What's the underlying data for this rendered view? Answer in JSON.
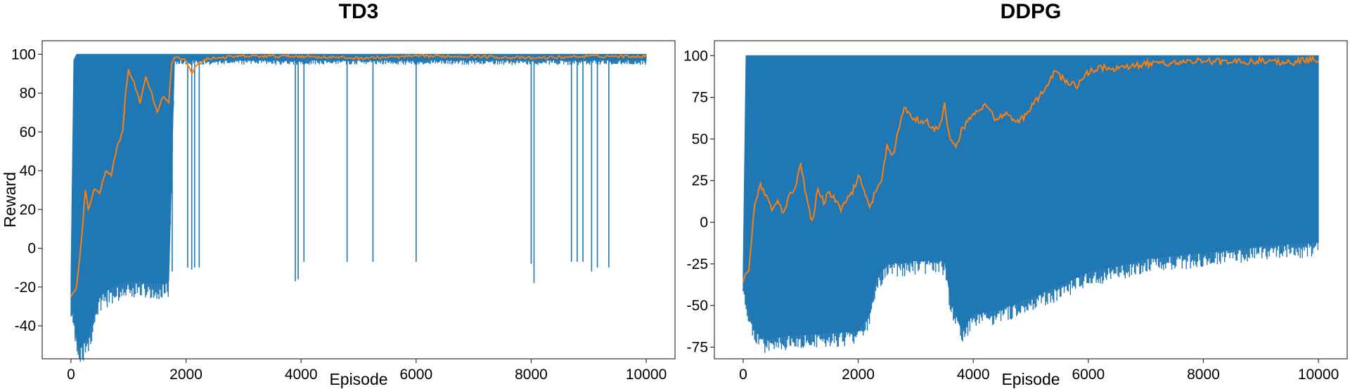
{
  "chart_data": [
    {
      "type": "line",
      "title": "TD3",
      "xlabel": "Episode",
      "ylabel": "Reward",
      "xlim": [
        -500,
        10500
      ],
      "ylim": [
        -57,
        107
      ],
      "xticks": [
        0,
        2000,
        4000,
        6000,
        8000,
        10000
      ],
      "yticks": [
        -40,
        -20,
        0,
        20,
        40,
        60,
        80,
        100
      ],
      "xtick_labels": [
        "0",
        "2000",
        "4000",
        "6000",
        "8000",
        "10000"
      ],
      "ytick_labels": [
        "-40",
        "-20",
        "0",
        "20",
        "40",
        "60",
        "80",
        "100"
      ],
      "grid": false,
      "legend": "none",
      "series": [
        {
          "role": "raw_reward_envelope",
          "color": "#1f77b4",
          "x": [
            0,
            50,
            100,
            150,
            200,
            300,
            400,
            500,
            700,
            900,
            1000,
            1200,
            1400,
            1600,
            1700,
            1800,
            2000,
            2200,
            2300,
            2500,
            3000,
            3500,
            4000,
            5000,
            6000,
            7000,
            8000,
            9000,
            10000
          ],
          "upper": [
            -15,
            97,
            100,
            100,
            100,
            100,
            100,
            100,
            100,
            100,
            100,
            100,
            100,
            100,
            100,
            100,
            100,
            100,
            100,
            100,
            100,
            100,
            100,
            100,
            100,
            100,
            100,
            100,
            100
          ],
          "lower": [
            -35,
            -33,
            -48,
            -52,
            -50,
            -45,
            -35,
            -25,
            -20,
            -18,
            -17,
            -17,
            -18,
            -18,
            -17,
            97,
            97,
            97,
            97,
            97,
            97,
            97,
            97,
            97,
            97,
            97,
            97,
            97,
            97
          ]
        },
        {
          "role": "raw_reward_dips",
          "color": "#1f77b4",
          "x": [
            1760,
            2030,
            2100,
            2150,
            2230,
            3900,
            3950,
            4050,
            4800,
            5250,
            6000,
            8000,
            8050,
            8700,
            8800,
            8900,
            9050,
            9150,
            9350
          ],
          "min": [
            -12,
            -10,
            -11,
            -10,
            -10,
            -17,
            -16,
            -7,
            -7,
            -7,
            -7,
            -8,
            -18,
            -7,
            -7,
            -7,
            -12,
            -10,
            -10
          ]
        },
        {
          "role": "moving_average",
          "color": "#ff7f0e",
          "x": [
            0,
            100,
            200,
            250,
            300,
            400,
            500,
            600,
            700,
            800,
            900,
            950,
            1000,
            1100,
            1200,
            1300,
            1400,
            1500,
            1600,
            1700,
            1750,
            1800,
            2000,
            2100,
            2200,
            2400,
            3000,
            4000,
            5000,
            6000,
            7000,
            8000,
            9000,
            10000
          ],
          "y": [
            -25,
            -20,
            10,
            30,
            20,
            30,
            28,
            40,
            38,
            52,
            60,
            80,
            92,
            85,
            75,
            88,
            80,
            70,
            78,
            75,
            95,
            99,
            97,
            90,
            95,
            98,
            99,
            99,
            98,
            99,
            99,
            98,
            99,
            99
          ]
        }
      ]
    },
    {
      "type": "line",
      "title": "DDPG",
      "xlabel": "Episode",
      "ylabel": "",
      "xlim": [
        -500,
        10500
      ],
      "ylim": [
        -82,
        109
      ],
      "xticks": [
        0,
        2000,
        4000,
        6000,
        8000,
        10000
      ],
      "yticks": [
        -75,
        -50,
        -25,
        0,
        25,
        50,
        75,
        100
      ],
      "xtick_labels": [
        "0",
        "2000",
        "4000",
        "6000",
        "8000",
        "10000"
      ],
      "ytick_labels": [
        "-75",
        "-50",
        "-25",
        "0",
        "25",
        "50",
        "75",
        "100"
      ],
      "grid": false,
      "legend": "none",
      "series": [
        {
          "role": "raw_reward_envelope",
          "color": "#1f77b4",
          "x": [
            0,
            50,
            100,
            200,
            400,
            800,
            1200,
            1600,
            2000,
            2200,
            2300,
            2500,
            3000,
            3500,
            3600,
            3800,
            4000,
            4500,
            5000,
            5500,
            6000,
            7000,
            8000,
            9000,
            10000
          ],
          "upper": [
            -30,
            100,
            100,
            100,
            100,
            100,
            100,
            100,
            100,
            100,
            100,
            100,
            100,
            100,
            100,
            100,
            100,
            100,
            100,
            100,
            100,
            100,
            100,
            100,
            100
          ],
          "lower": [
            -40,
            -45,
            -55,
            -65,
            -70,
            -68,
            -67,
            -66,
            -65,
            -55,
            -35,
            -25,
            -23,
            -23,
            -45,
            -65,
            -55,
            -52,
            -45,
            -38,
            -30,
            -22,
            -18,
            -14,
            -12
          ]
        },
        {
          "role": "moving_average",
          "color": "#ff7f0e",
          "x": [
            0,
            100,
            200,
            300,
            400,
            500,
            600,
            700,
            800,
            900,
            1000,
            1100,
            1200,
            1300,
            1400,
            1500,
            1700,
            1900,
            2000,
            2200,
            2400,
            2500,
            2600,
            2700,
            2800,
            3000,
            3200,
            3400,
            3500,
            3600,
            3700,
            3800,
            4000,
            4200,
            4400,
            4600,
            4800,
            5000,
            5200,
            5400,
            5600,
            5800,
            6000,
            6200,
            6500,
            7000,
            7500,
            8000,
            8500,
            9000,
            9500,
            10000
          ],
          "y": [
            -35,
            -28,
            10,
            22,
            15,
            8,
            12,
            5,
            15,
            20,
            35,
            15,
            0,
            20,
            12,
            18,
            8,
            18,
            28,
            10,
            25,
            45,
            40,
            55,
            68,
            62,
            60,
            55,
            70,
            50,
            45,
            55,
            65,
            70,
            62,
            65,
            60,
            68,
            78,
            90,
            85,
            82,
            90,
            93,
            92,
            95,
            96,
            97,
            96,
            97,
            96,
            98
          ]
        }
      ]
    }
  ]
}
